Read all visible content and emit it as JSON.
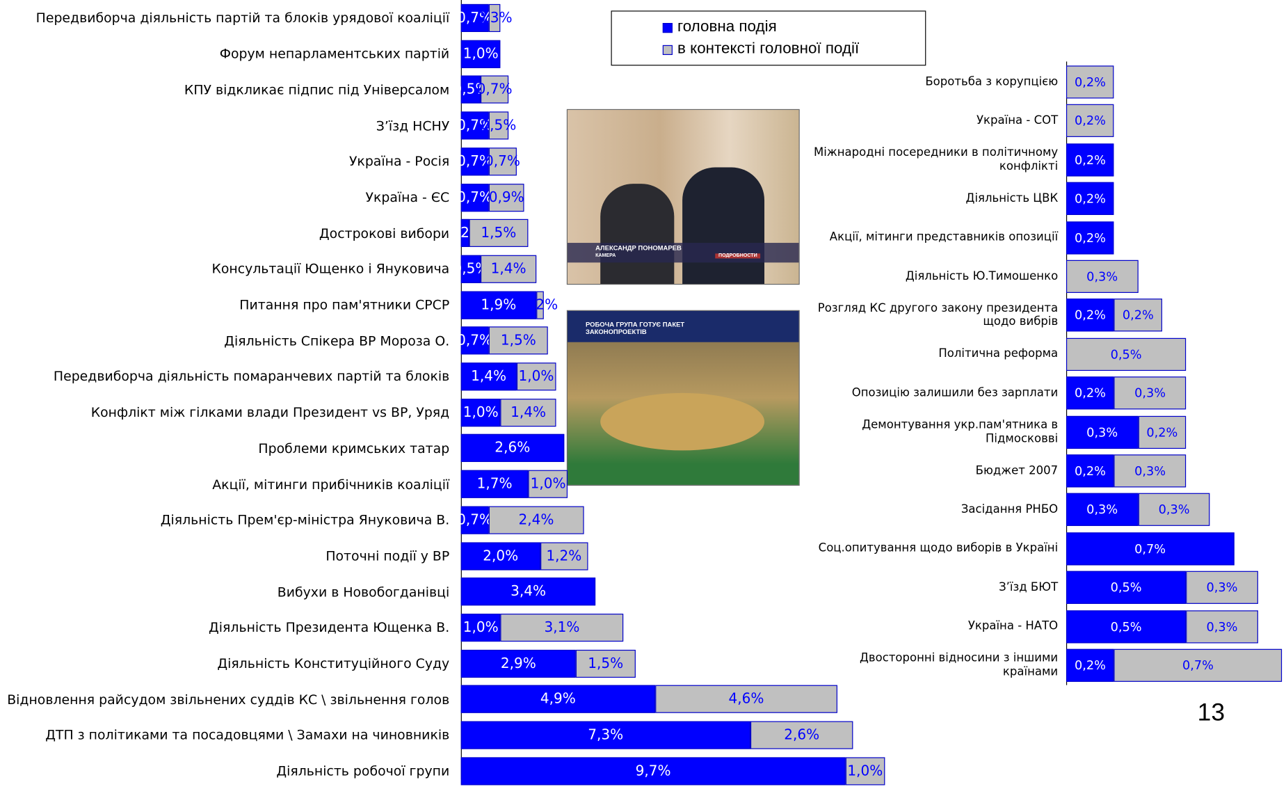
{
  "chart_data": [
    {
      "type": "bar",
      "orientation": "horizontal",
      "stacked": true,
      "legend": "top",
      "categories": [
        "Передвиборча діяльність партій та блоків урядової коаліції",
        "Форум непарламентських партій",
        "КПУ відкликає підпис під Універсалом",
        "З’їзд НСНУ",
        "Україна - Росія",
        "Україна - ЄС",
        "Дострокові вибори",
        "Консультації Ющенко і Януковича",
        "Питання про пам'ятники СРСР",
        "Діяльність Спікера ВР Мороза О.",
        "Передвиборча діяльність помаранчевих партій та блоків",
        "Конфлікт між гілками влади Президент vs ВР, Уряд",
        "Проблеми кримських татар",
        "Акції, мітинги прибічників коаліції",
        "Діяльність Прем'єр-міністра Януковича В.",
        "Поточні події у ВР",
        "Вибухи в Новобогданівці",
        "Діяльність Президента Ющенка В.",
        "Діяльність Конституційного Суду",
        "Відновлення райсудом звільнених суддів КС \\ звільнення голов",
        "ДТП з політиками та посадовцями \\ Замахи на чиновників",
        "Діяльність робочої групи"
      ],
      "series": [
        {
          "name": "головна подія",
          "color": "#0000ff",
          "values": [
            0.7,
            1.0,
            0.5,
            0.7,
            0.7,
            0.7,
            0.2,
            0.5,
            1.9,
            0.7,
            1.4,
            1.0,
            2.6,
            1.7,
            0.7,
            2.0,
            3.4,
            1.0,
            2.9,
            4.9,
            7.3,
            9.7
          ],
          "value_labels": [
            "0,7%",
            "1,0%",
            "0,5%",
            "0,7%",
            "0,7%",
            "0,7%",
            "0,2%",
            "0,5%",
            "1,9%",
            "0,7%",
            "1,4%",
            "1,0%",
            "2,6%",
            "1,7%",
            "0,7%",
            "2,0%",
            "3,4%",
            "1,0%",
            "2,9%",
            "4,9%",
            "7,3%",
            "9,7%"
          ]
        },
        {
          "name": "в контексті головної події",
          "color": "#c0c0c0",
          "values": [
            0.3,
            null,
            0.7,
            0.5,
            0.7,
            0.9,
            1.5,
            1.4,
            0.2,
            1.5,
            1.0,
            1.4,
            null,
            1.0,
            2.4,
            1.2,
            null,
            3.1,
            1.5,
            4.6,
            2.6,
            1.0
          ],
          "value_labels": [
            "0,3%",
            null,
            "0,7%",
            "0,5%",
            "0,7%",
            "0,9%",
            "1,5%",
            "1,4%",
            "0,2%",
            "1,5%",
            "1,0%",
            "1,4%",
            null,
            "1,0%",
            "2,4%",
            "1,2%",
            null,
            "3,1%",
            "1,5%",
            "4,6%",
            "2,6%",
            "1,0%"
          ]
        }
      ]
    },
    {
      "type": "bar",
      "orientation": "horizontal",
      "stacked": true,
      "categories": [
        "Боротьба з корупцією",
        "Україна - СОТ",
        "Міжнародні посередники в політичному конфлікті",
        "Діяльність ЦВК",
        "Акції, мітинги представників опозиції",
        "Діяльність Ю.Тимошенко",
        "Розгляд КС другого закону президента щодо вибрів",
        "Політична реформа",
        "Опозицію залишили без зарплати",
        "Демонтування укр.пам'ятника в Підмосковві",
        "Бюджет 2007",
        "Засідання РНБО",
        "Соц.опитування щодо виборів в Україні",
        "З’їзд БЮТ",
        "Україна - НАТО",
        "Двосторонні відносини з іншими країнами"
      ],
      "series": [
        {
          "color": "#0000ff",
          "values": [
            null,
            null,
            0.2,
            0.2,
            0.2,
            null,
            0.2,
            null,
            0.2,
            0.3,
            0.2,
            0.3,
            0.7,
            0.5,
            0.5,
            0.2
          ],
          "value_labels": [
            null,
            null,
            "0,2%",
            "0,2%",
            "0,2%",
            null,
            "0,2%",
            null,
            "0,2%",
            "0,3%",
            "0,2%",
            "0,3%",
            "0,7%",
            "0,5%",
            "0,5%",
            "0,2%"
          ]
        },
        {
          "color": "#c0c0c0",
          "values": [
            0.2,
            0.2,
            null,
            null,
            null,
            0.3,
            0.2,
            0.5,
            0.3,
            0.2,
            0.3,
            0.3,
            null,
            0.3,
            0.3,
            0.7
          ],
          "value_labels": [
            "0,2%",
            "0,2%",
            null,
            null,
            null,
            "0,3%",
            "0,2%",
            "0,5%",
            "0,3%",
            "0,2%",
            "0,3%",
            "0,3%",
            null,
            "0,3%",
            "0,3%",
            "0,7%"
          ]
        }
      ]
    }
  ],
  "slide": {
    "page_number": "13",
    "photos": [
      {
        "caption": "АЛЕКСАНДР ПОНОМАРЕВ",
        "sub": "КАМЕРА",
        "logo": "ПОДРОБНОСТИ"
      },
      {
        "caption": "РОБОЧА ГРУПА ГОТУЄ ПАКЕТ ЗАКОНОПРОЕКТІВ"
      }
    ]
  }
}
